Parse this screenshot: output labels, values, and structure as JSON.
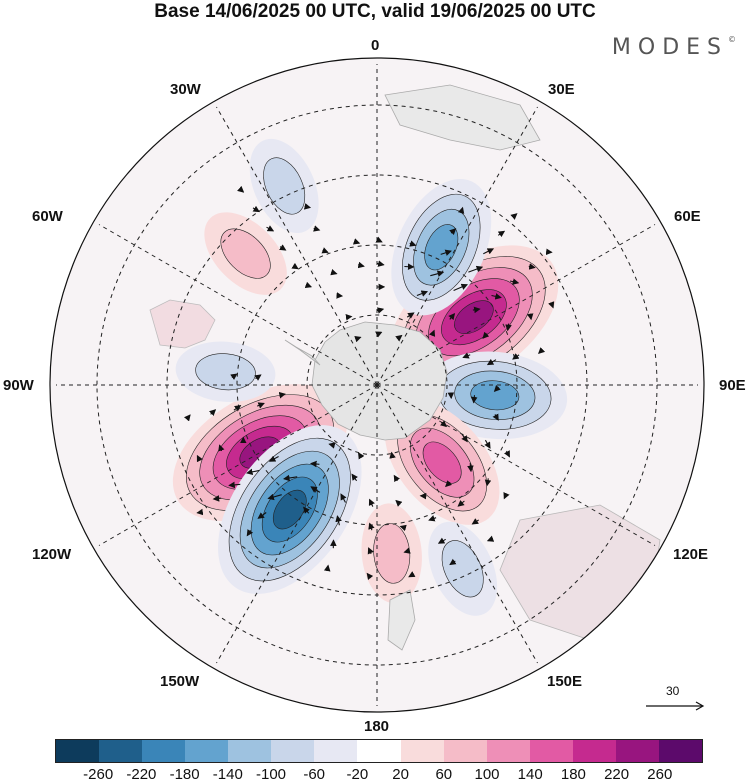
{
  "title": "Base 14/06/2025 00 UTC, valid 19/06/2025 00 UTC",
  "logo": "MODES",
  "longitude_labels": {
    "top": "0",
    "e30": "30E",
    "e60": "60E",
    "e90": "90E",
    "e120": "120E",
    "e150": "150E",
    "bottom": "180",
    "w150": "150W",
    "w120": "120W",
    "w90": "90W",
    "w60": "60W",
    "w30": "30W"
  },
  "reference_vector_label": "30",
  "colorbar": {
    "colors": [
      "#0d3b5c",
      "#1f5f8b",
      "#3a85b8",
      "#63a3cf",
      "#9ec2e0",
      "#c9d6ea",
      "#e7e8f3",
      "#ffffff",
      "#f9dcdc",
      "#f5bcc8",
      "#ee8fb7",
      "#e25aa4",
      "#c52a8f",
      "#98157f",
      "#5c0a6b"
    ],
    "labels": [
      "-260",
      "-220",
      "-180",
      "-140",
      "-100",
      "-60",
      "-20",
      "20",
      "60",
      "100",
      "140",
      "180",
      "220",
      "260"
    ]
  },
  "map": {
    "land_color": "#e5e5e5",
    "anomaly_centers": [
      {
        "sign": "positive",
        "strength": 3,
        "lon": 55,
        "lat": -55
      },
      {
        "sign": "negative",
        "strength": 2,
        "lon": 95,
        "lat": -55
      },
      {
        "sign": "positive",
        "strength": 2,
        "lon": 140,
        "lat": -60
      },
      {
        "sign": "negative",
        "strength": 2,
        "lon": 25,
        "lat": -45
      },
      {
        "sign": "positive",
        "strength": 3,
        "lon": -120,
        "lat": -50
      },
      {
        "sign": "negative",
        "strength": 3,
        "lon": -145,
        "lat": -45
      },
      {
        "sign": "negative",
        "strength": 1,
        "lon": -85,
        "lat": -45
      },
      {
        "sign": "positive",
        "strength": 1,
        "lon": -45,
        "lat": -35
      },
      {
        "sign": "negative",
        "strength": 1,
        "lon": -25,
        "lat": -25
      },
      {
        "sign": "positive",
        "strength": 1,
        "lon": 175,
        "lat": -40
      },
      {
        "sign": "negative",
        "strength": 1,
        "lon": 155,
        "lat": -30
      }
    ]
  }
}
